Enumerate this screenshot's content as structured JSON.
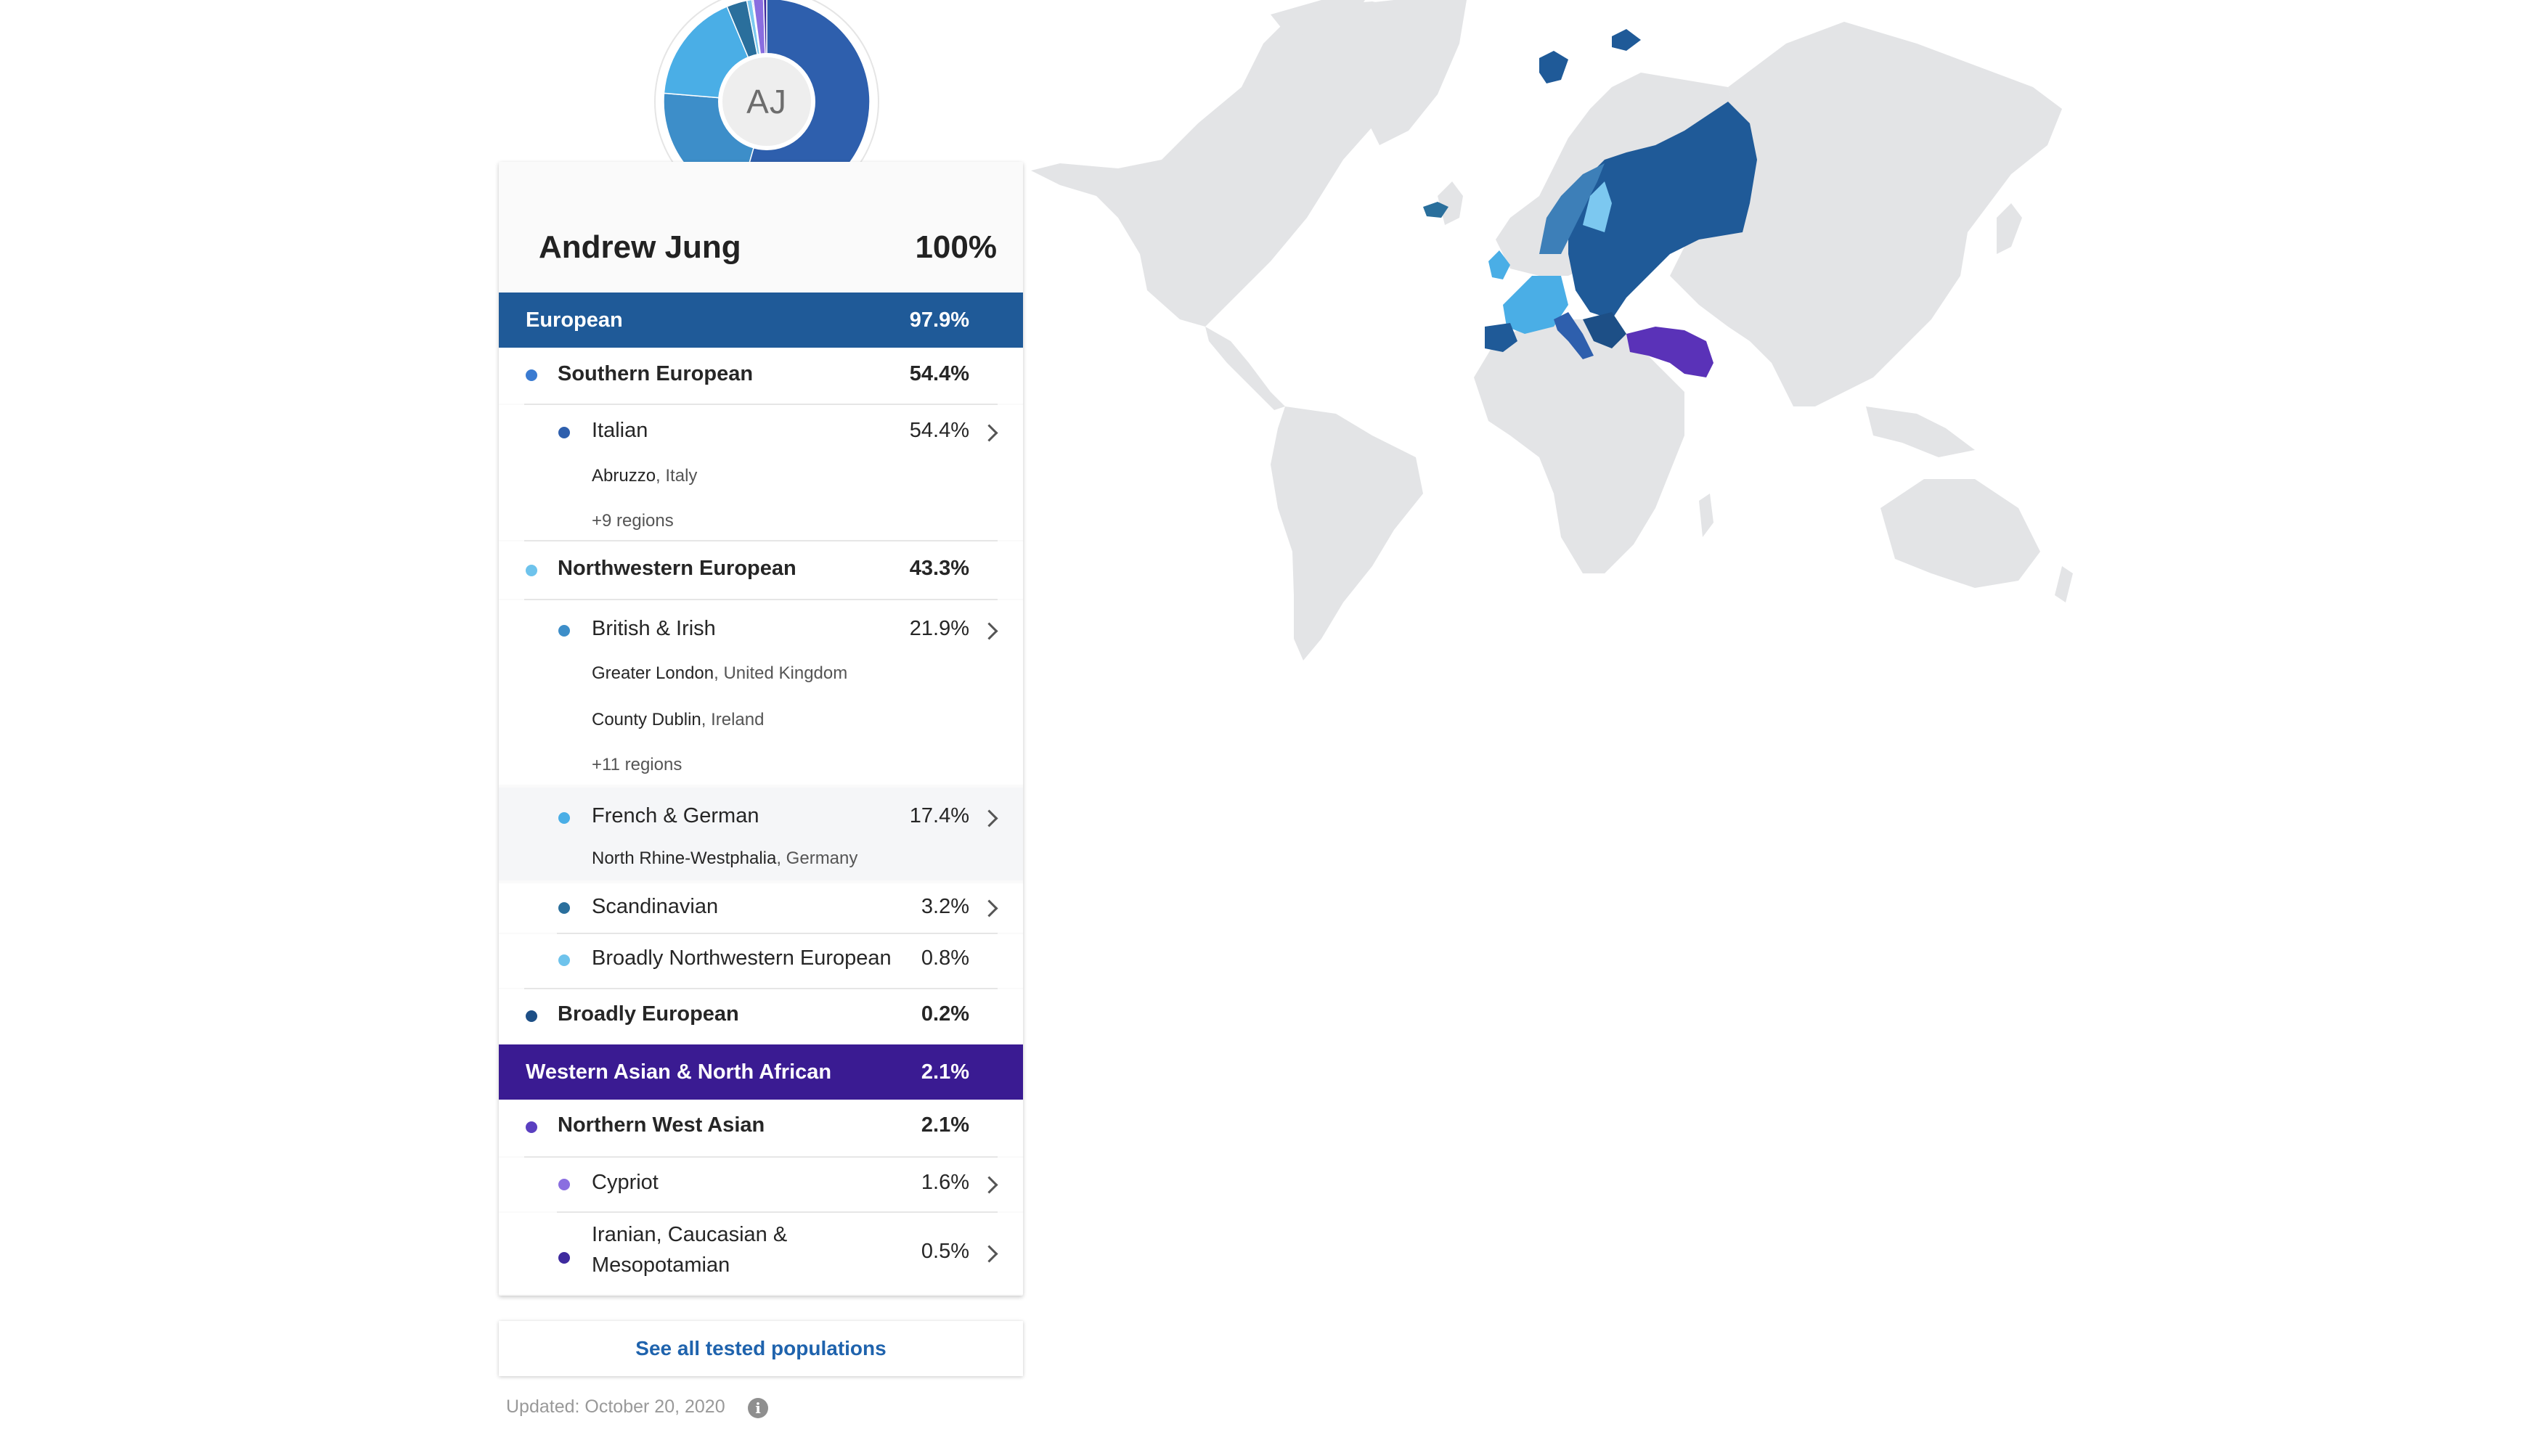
{
  "profile": {
    "initials": "AJ",
    "name": "Andrew Jung",
    "total": "100%"
  },
  "donut_segments": [
    {
      "label": "Italian",
      "value": 54.4,
      "color": "#2e5fad"
    },
    {
      "label": "British & Irish",
      "value": 21.9,
      "color": "#3d8ec9"
    },
    {
      "label": "French & German",
      "value": 17.4,
      "color": "#4aaee6"
    },
    {
      "label": "Scandinavian",
      "value": 3.2,
      "color": "#2a6f9c"
    },
    {
      "label": "Broadly Northwestern European",
      "value": 0.8,
      "color": "#7cc8f0"
    },
    {
      "label": "Broadly European",
      "value": 0.2,
      "color": "#1d4f86"
    },
    {
      "label": "Cypriot",
      "value": 1.6,
      "color": "#8a6ee0"
    },
    {
      "label": "Iranian, Caucasian & Mesopotamian",
      "value": 0.5,
      "color": "#3e2a9e"
    }
  ],
  "groups": {
    "european": {
      "label": "European",
      "pct": "97.9%",
      "color": "#1f5a98"
    },
    "wana": {
      "label": "Western Asian & North African",
      "pct": "2.1%",
      "color": "#3a1b92"
    }
  },
  "rows": {
    "southern": {
      "label": "Southern European",
      "pct": "54.4%",
      "color": "#3a7bd1"
    },
    "italian": {
      "label": "Italian",
      "pct": "54.4%",
      "color": "#2e5fad",
      "regions": [
        {
          "name": "Abruzzo",
          "country": ", Italy"
        }
      ],
      "more": "+9 regions"
    },
    "northwestern": {
      "label": "Northwestern European",
      "pct": "43.3%",
      "color": "#6ec3ec"
    },
    "british": {
      "label": "British & Irish",
      "pct": "21.9%",
      "color": "#3d8ec9",
      "regions": [
        {
          "name": "Greater London",
          "country": ", United Kingdom"
        },
        {
          "name": "County Dublin",
          "country": ", Ireland"
        }
      ],
      "more": "+11 regions"
    },
    "french": {
      "label": "French & German",
      "pct": "17.4%",
      "color": "#4aaee6",
      "regions": [
        {
          "name": "North Rhine-Westphalia",
          "country": ", Germany"
        }
      ]
    },
    "scandinavian": {
      "label": "Scandinavian",
      "pct": "3.2%",
      "color": "#2a6f9c"
    },
    "broadnw": {
      "label": "Broadly Northwestern European",
      "pct": "0.8%",
      "color": "#6ec3ec"
    },
    "broadeu": {
      "label": "Broadly European",
      "pct": "0.2%",
      "color": "#1d4f86"
    },
    "northernwa": {
      "label": "Northern West Asian",
      "pct": "2.1%",
      "color": "#5a3fc0"
    },
    "cypriot": {
      "label": "Cypriot",
      "pct": "1.6%",
      "color": "#8a6ee0"
    },
    "iranian": {
      "label_line1": "Iranian, Caucasian &",
      "label_line2": "Mesopotamian",
      "pct": "0.5%",
      "color": "#3e2a9e"
    }
  },
  "footer": {
    "see_all": "See all tested populations",
    "updated": "Updated: October 20, 2020",
    "info_icon": "i"
  },
  "map": {
    "land_color": "#e3e4e6",
    "highlight_colors": {
      "european": "#1f5a98",
      "italian": "#2e5fad",
      "nw": "#4aaee6",
      "scandinavian": "#3d7fb8",
      "finland": "#7cc8f0",
      "wana": "#5a32b8"
    }
  }
}
